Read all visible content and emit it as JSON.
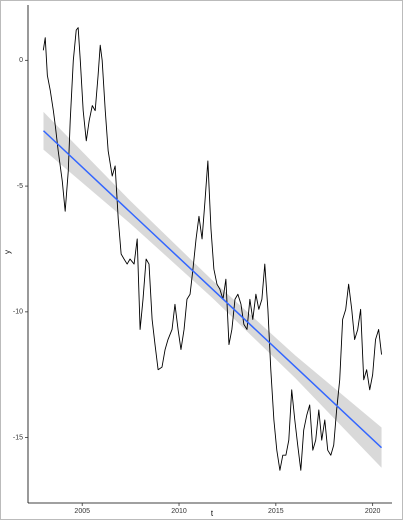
{
  "chart_data": {
    "type": "line",
    "xlabel": "t",
    "ylabel": "y",
    "xlim": [
      2002.2,
      2021.0
    ],
    "ylim": [
      -17.6,
      2.2
    ],
    "xticks": [
      2005,
      2010,
      2015,
      2020
    ],
    "yticks": [
      -15,
      -10,
      -5,
      0
    ],
    "series": [
      {
        "color": "#000000",
        "x": [
          2002.99,
          2003.09,
          2003.2,
          2003.35,
          2003.51,
          2003.61,
          2003.76,
          2003.97,
          2004.12,
          2004.28,
          2004.38,
          2004.54,
          2004.69,
          2004.79,
          2004.9,
          2005.05,
          2005.21,
          2005.36,
          2005.52,
          2005.67,
          2005.82,
          2005.93,
          2006.03,
          2006.19,
          2006.34,
          2006.55,
          2006.7,
          2006.86,
          2007.01,
          2007.16,
          2007.32,
          2007.47,
          2007.68,
          2007.84,
          2007.99,
          2008.14,
          2008.3,
          2008.45,
          2008.61,
          2008.76,
          2008.92,
          2009.12,
          2009.28,
          2009.43,
          2009.64,
          2009.79,
          2009.95,
          2010.1,
          2010.26,
          2010.41,
          2010.57,
          2010.72,
          2010.88,
          2011.03,
          2011.19,
          2011.34,
          2011.49,
          2011.65,
          2011.8,
          2011.96,
          2012.11,
          2012.27,
          2012.42,
          2012.58,
          2012.73,
          2012.89,
          2013.04,
          2013.2,
          2013.35,
          2013.51,
          2013.66,
          2013.81,
          2013.97,
          2014.12,
          2014.28,
          2014.43,
          2014.59,
          2014.74,
          2014.9,
          2015.05,
          2015.21,
          2015.36,
          2015.52,
          2015.67,
          2015.82,
          2015.98,
          2016.13,
          2016.29,
          2016.44,
          2016.6,
          2016.75,
          2016.91,
          2017.06,
          2017.22,
          2017.37,
          2017.53,
          2017.68,
          2017.84,
          2017.99,
          2018.14,
          2018.3,
          2018.45,
          2018.61,
          2018.76,
          2018.92,
          2019.07,
          2019.23,
          2019.38,
          2019.54,
          2019.69,
          2019.85,
          2020.0,
          2020.15,
          2020.31,
          2020.46
        ],
        "values": [
          0.4,
          0.9,
          -0.6,
          -1.2,
          -2,
          -2.6,
          -3.6,
          -4.8,
          -6,
          -4.4,
          -2.4,
          0,
          1.2,
          1.3,
          0,
          -2,
          -3.2,
          -2.4,
          -1.8,
          -2,
          -0.6,
          0.6,
          0,
          -2,
          -3.6,
          -4.6,
          -4.2,
          -6.3,
          -7.7,
          -7.9,
          -8.1,
          -7.9,
          -8.1,
          -7.1,
          -10.7,
          -9.5,
          -7.9,
          -8.1,
          -10.3,
          -11.3,
          -12.3,
          -12.2,
          -11.5,
          -11.1,
          -10.7,
          -9.7,
          -10.7,
          -11.5,
          -10.7,
          -9.5,
          -9.3,
          -8.3,
          -7.1,
          -6.2,
          -7.1,
          -5.6,
          -4,
          -6.7,
          -8.3,
          -8.9,
          -9.1,
          -9.5,
          -8.7,
          -11.3,
          -10.7,
          -9.5,
          -9.3,
          -9.7,
          -10.5,
          -10.7,
          -9.5,
          -10.3,
          -9.3,
          -9.9,
          -9.5,
          -8.1,
          -9.9,
          -12.3,
          -14.3,
          -15.5,
          -16.3,
          -15.7,
          -15.7,
          -15.1,
          -13.1,
          -14.3,
          -15.3,
          -16.3,
          -14.7,
          -14.1,
          -13.7,
          -15.5,
          -15.1,
          -13.9,
          -15.1,
          -14.3,
          -15.5,
          -15.7,
          -15.3,
          -13.9,
          -12.7,
          -10.3,
          -9.9,
          -8.9,
          -9.9,
          -11.1,
          -10.7,
          -9.9,
          -12.7,
          -12.3,
          -13.1,
          -12.5,
          -11.1,
          -10.7,
          -11.7
        ]
      },
      {
        "color": "#3366ff",
        "band_color": "#d9d9d9",
        "x": [
          2003.0,
          2007.5,
          2011.7,
          2016.0,
          2020.46
        ],
        "values": [
          -2.8,
          -6.05,
          -9.08,
          -12.18,
          -15.4
        ],
        "lower": [
          -3.55,
          -6.5,
          -9.43,
          -12.63,
          -16.2
        ],
        "upper": [
          -2.05,
          -5.6,
          -8.73,
          -11.73,
          -14.6
        ]
      }
    ]
  }
}
